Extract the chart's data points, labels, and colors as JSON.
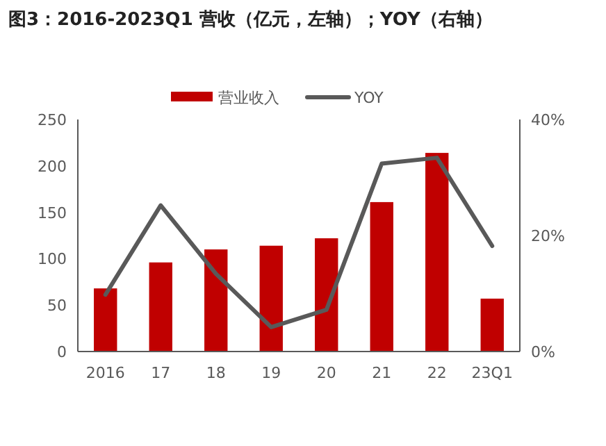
{
  "chart_data": {
    "type": "bar",
    "title": "图3：2016-2023Q1 营收（亿元，左轴）；YOY（右轴）",
    "categories": [
      "2016",
      "17",
      "18",
      "19",
      "20",
      "21",
      "22",
      "23Q1"
    ],
    "series": [
      {
        "name": "营业收入",
        "color": "#c00000",
        "values": [
          68,
          96,
          110,
          114,
          122,
          161,
          214,
          57
        ]
      },
      {
        "name": "YOY",
        "type": "line",
        "axis": "y2",
        "color": "#595959",
        "values": [
          9.8,
          25.2,
          13.4,
          4.2,
          7.2,
          32.4,
          33.4,
          18.2
        ]
      }
    ],
    "ylim": [
      0,
      250
    ],
    "yticks": [
      0,
      50,
      100,
      150,
      200,
      250
    ],
    "y2lim": [
      0,
      40
    ],
    "y2ticks": [
      {
        "value": 0,
        "label": "0%"
      },
      {
        "value": 20,
        "label": "20%"
      },
      {
        "value": 40,
        "label": "40%"
      }
    ],
    "legend": "top",
    "grid": false,
    "marker": "none",
    "line_style": "solid"
  }
}
